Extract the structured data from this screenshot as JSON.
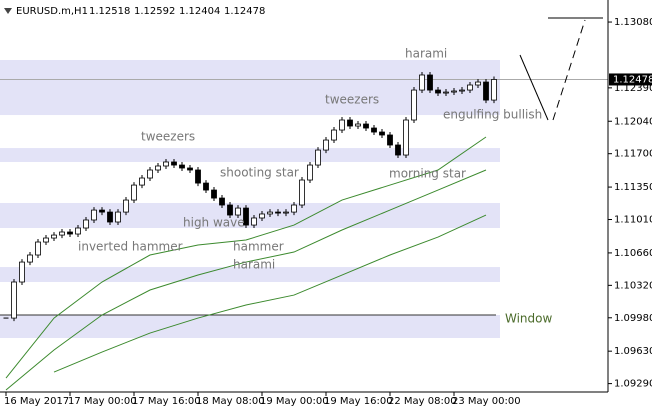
{
  "chart_data": {
    "type": "candlestick",
    "symbol": "EURUSD.m,H1",
    "ohlc": [
      {
        "value": 1.12518,
        "label": "1.12518"
      },
      {
        "value": 1.12592,
        "label": "1.12592"
      },
      {
        "value": 1.12404,
        "label": "1.12404"
      },
      {
        "value": 1.12478,
        "label": "1.12478"
      }
    ],
    "x": [
      0,
      2,
      4,
      6,
      8,
      10,
      12,
      14,
      16,
      18,
      20,
      22,
      24,
      26,
      28,
      30,
      32,
      34,
      36,
      38,
      40,
      42,
      44,
      46,
      48,
      50,
      52,
      54,
      56,
      58,
      60,
      62,
      64,
      66,
      68,
      70,
      72,
      74,
      76,
      78,
      80,
      82,
      84,
      86,
      88,
      90,
      92,
      94,
      96,
      98,
      100,
      102,
      104,
      106,
      108,
      110,
      112,
      114,
      116,
      118,
      120,
      122
    ],
    "values": [
      1.09977,
      1.10355,
      1.10564,
      1.10638,
      1.10774,
      1.10816,
      1.10847,
      1.10879,
      1.10858,
      1.10921,
      1.11005,
      1.11109,
      1.11088,
      1.10984,
      1.11088,
      1.11214,
      1.11371,
      1.11445,
      1.11529,
      1.11571,
      1.11613,
      1.11581,
      1.1155,
      1.11529,
      1.11392,
      1.11319,
      1.11235,
      1.11162,
      1.11057,
      1.1113,
      1.10952,
      1.11026,
      1.11068,
      1.11088,
      1.11078,
      1.11088,
      1.11162,
      1.11424,
      1.11581,
      1.11738,
      1.11843,
      1.11948,
      1.12053,
      1.1199,
      1.12011,
      1.11969,
      1.11927,
      1.11896,
      1.11791,
      1.11686,
      1.12053,
      1.12367,
      1.12525,
      1.12367,
      1.12336,
      1.12346,
      1.12357,
      1.12367,
      1.1242,
      1.12451,
      1.12262,
      1.12478
    ],
    "moving_averages": [
      {
        "color": "#3c8a2e",
        "x": [
          0,
          12,
          24,
          36,
          48,
          60,
          72,
          84,
          96,
          108,
          120
        ],
        "values": [
          1.09348,
          1.09977,
          1.10355,
          1.10638,
          1.10743,
          1.10795,
          1.10952,
          1.11214,
          1.11371,
          1.11529,
          1.11875
        ]
      },
      {
        "color": "#3c8a2e",
        "x": [
          0,
          12,
          24,
          36,
          48,
          60,
          72,
          84,
          96,
          108,
          120
        ],
        "values": [
          1.09223,
          1.09642,
          1.10009,
          1.10271,
          1.10428,
          1.10564,
          1.10669,
          1.109,
          1.11109,
          1.11319,
          1.11529
        ]
      },
      {
        "color": "#3c8a2e",
        "x": [
          12,
          24,
          36,
          48,
          60,
          72,
          84,
          96,
          108,
          120
        ],
        "values": [
          1.09411,
          1.09621,
          1.0982,
          1.09977,
          1.10114,
          1.10218,
          1.10428,
          1.10638,
          1.10826,
          1.11057
        ]
      }
    ],
    "zones": [
      {
        "low": 1.12105,
        "high": 1.12682
      },
      {
        "low": 1.11613,
        "high": 1.11759
      },
      {
        "low": 1.10921,
        "high": 1.11183
      },
      {
        "low": 1.10355,
        "high": 1.10512
      },
      {
        "low": 1.09768,
        "high": 1.10009
      }
    ],
    "window_level": 1.10009,
    "annotations": [
      "harami",
      "tweezers",
      "engulfing bullish",
      "tweezers",
      "shooting star",
      "morning star",
      "high wave",
      "inverted hammer",
      "hammer",
      "harami",
      "Window"
    ],
    "xlim": [
      -1.5,
      150.5
    ],
    "xticks": [
      {
        "value": 0,
        "label": "16 May 2017"
      },
      {
        "value": 16,
        "label": "17 May 00:00"
      },
      {
        "value": 32,
        "label": "17 May 16:00"
      },
      {
        "value": 48,
        "label": "18 May 08:00"
      },
      {
        "value": 64,
        "label": "19 May 00:00"
      },
      {
        "value": 80,
        "label": "19 May 16:00"
      },
      {
        "value": 96,
        "label": "22 May 08:00"
      },
      {
        "value": 112,
        "label": "23 May 00:00"
      }
    ],
    "ylim": [
      1.09202,
      1.13311
    ],
    "yticks": [
      {
        "value": 1.1308,
        "label": "1.13080"
      },
      {
        "value": 1.1239,
        "label": "1.12390"
      },
      {
        "value": 1.1204,
        "label": "1.12040"
      },
      {
        "value": 1.117,
        "label": "1.11700"
      },
      {
        "value": 1.1135,
        "label": "1.11350"
      },
      {
        "value": 1.1101,
        "label": "1.11010"
      },
      {
        "value": 1.1066,
        "label": "1.10660"
      },
      {
        "value": 1.1032,
        "label": "1.10320"
      },
      {
        "value": 1.0998,
        "label": "1.09980"
      },
      {
        "value": 1.0963,
        "label": "1.09630"
      },
      {
        "value": 1.0929,
        "label": "1.09290"
      }
    ],
    "zone_color": "#e3e3f7"
  }
}
